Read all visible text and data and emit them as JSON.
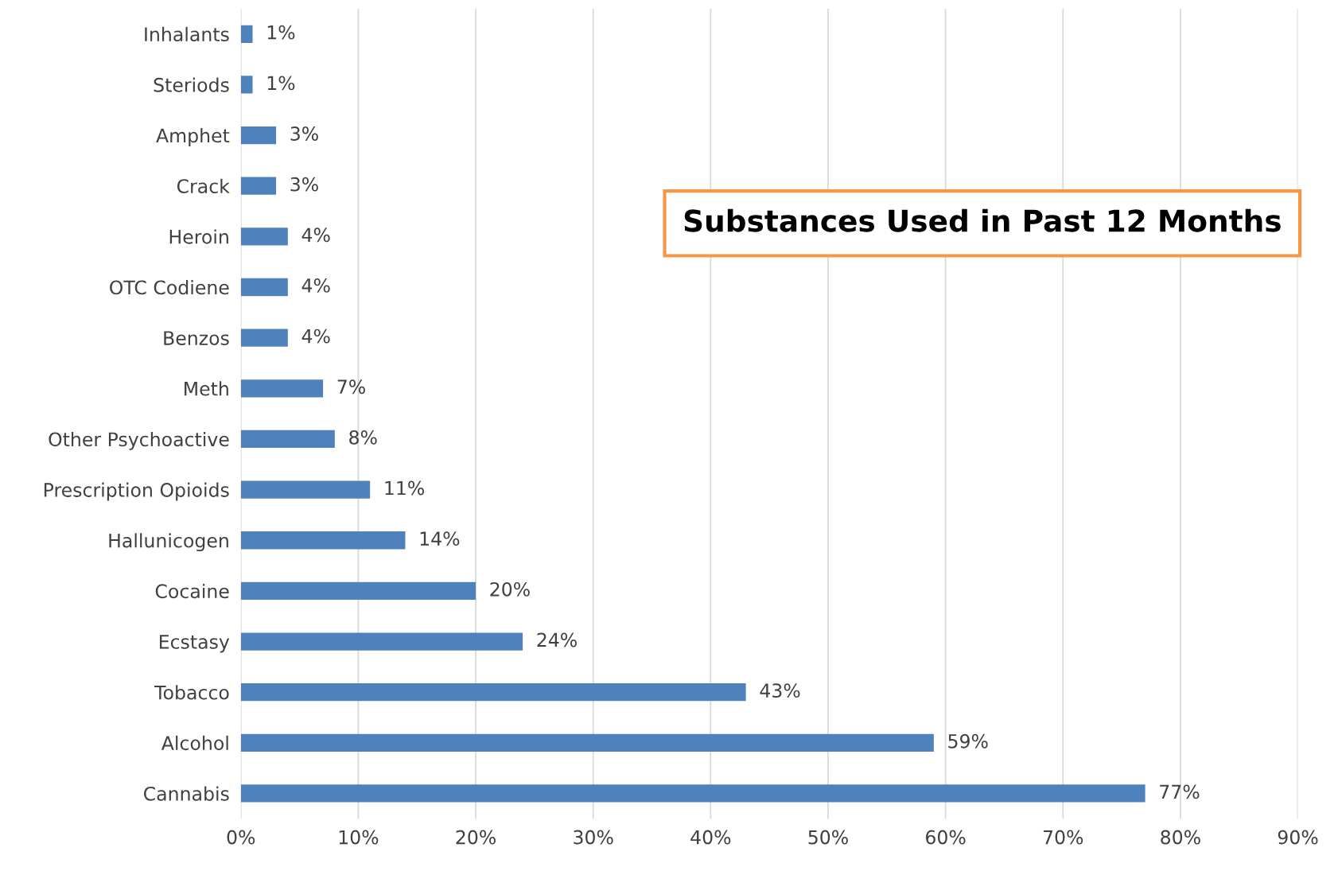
{
  "chart_data": {
    "type": "bar",
    "orientation": "horizontal",
    "title": "Substances Used in Past 12 Months",
    "categories": [
      "Inhalants",
      "Steriods",
      "Amphet",
      "Crack",
      "Heroin",
      "OTC Codiene",
      "Benzos",
      "Meth",
      "Other Psychoactive",
      "Prescription Opioids",
      "Hallunicogen",
      "Cocaine",
      "Ecstasy",
      "Tobacco",
      "Alcohol",
      "Cannabis"
    ],
    "values": [
      1,
      1,
      3,
      3,
      4,
      4,
      4,
      7,
      8,
      11,
      14,
      20,
      24,
      43,
      59,
      77
    ],
    "value_labels": [
      "1%",
      "1%",
      "3%",
      "3%",
      "4%",
      "4%",
      "4%",
      "7%",
      "8%",
      "11%",
      "14%",
      "20%",
      "24%",
      "43%",
      "59%",
      "77%"
    ],
    "color": "#4f81bd",
    "xlim": [
      0,
      90
    ],
    "xticks": [
      {
        "value": 0,
        "label": "0%"
      },
      {
        "value": 10,
        "label": "10%"
      },
      {
        "value": 20,
        "label": "20%"
      },
      {
        "value": 30,
        "label": "30%"
      },
      {
        "value": 40,
        "label": "40%"
      },
      {
        "value": 50,
        "label": "50%"
      },
      {
        "value": 60,
        "label": "60%"
      },
      {
        "value": 70,
        "label": "70%"
      },
      {
        "value": 80,
        "label": "80%"
      },
      {
        "value": 90,
        "label": "90%"
      }
    ],
    "grid": "x",
    "legend": false
  }
}
